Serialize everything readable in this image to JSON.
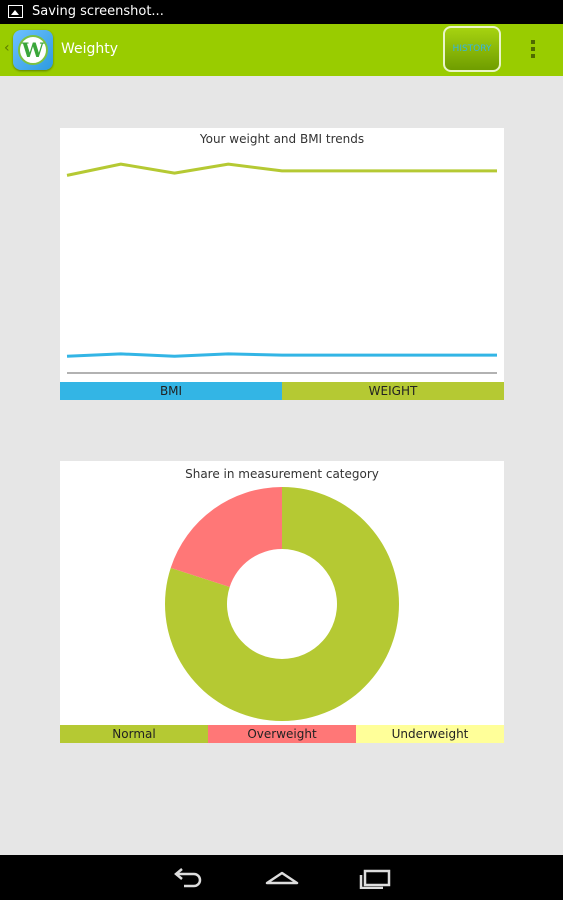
{
  "status_bar": {
    "text": "Saving screenshot..."
  },
  "action_bar": {
    "title": "Weighty",
    "logo_letter": "W",
    "history_label": "HISTORY"
  },
  "colors": {
    "action_bar": "#99cc00",
    "bmi": "#33b5e5",
    "weight": "#b5c933",
    "normal": "#b5c933",
    "overweight": "#ff7777",
    "underweight": "#ffff99"
  },
  "trend_chart": {
    "title": "Your weight and BMI trends",
    "legend": [
      {
        "label": "BMI",
        "color": "#33b5e5"
      },
      {
        "label": "WEIGHT",
        "color": "#b5c933"
      }
    ]
  },
  "share_chart": {
    "title": "Share in measurement category",
    "legend": [
      {
        "label": "Normal",
        "color": "#b5c933"
      },
      {
        "label": "Overweight",
        "color": "#ff7777"
      },
      {
        "label": "Underweight",
        "color": "#ffff99"
      }
    ]
  },
  "chart_data": [
    {
      "type": "line",
      "title": "Your weight and BMI trends",
      "x": [
        1,
        2,
        3,
        4,
        5,
        6,
        7,
        8,
        9
      ],
      "ylim": [
        0,
        100
      ],
      "grid": false,
      "legend": "bottom",
      "series": [
        {
          "name": "WEIGHT",
          "color": "#b5c933",
          "values": [
            87,
            92,
            88,
            92,
            89,
            89,
            89,
            89,
            89
          ]
        },
        {
          "name": "BMI",
          "color": "#33b5e5",
          "values": [
            7,
            8,
            7,
            8,
            7.5,
            7.5,
            7.5,
            7.5,
            7.5
          ]
        }
      ]
    },
    {
      "type": "pie",
      "title": "Share in measurement category",
      "categories": [
        "Normal",
        "Overweight",
        "Underweight"
      ],
      "values": [
        80,
        20,
        0
      ],
      "colors": [
        "#b5c933",
        "#ff7777",
        "#ffff99"
      ],
      "legend": "bottom"
    }
  ]
}
